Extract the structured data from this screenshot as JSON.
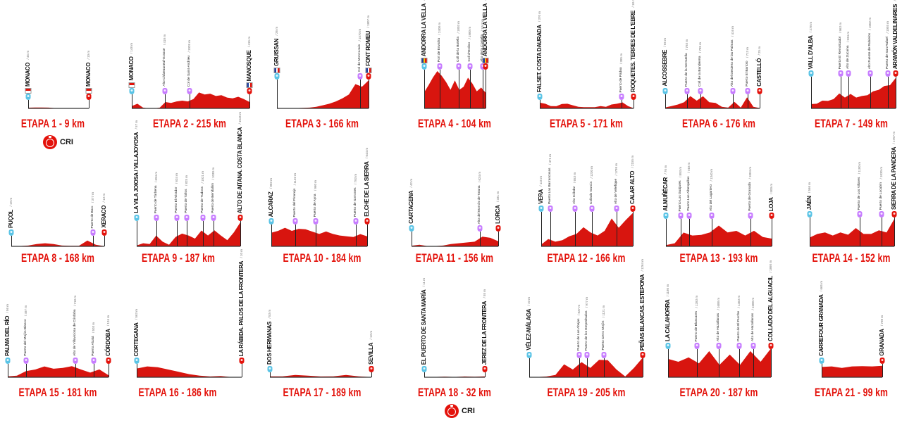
{
  "colors": {
    "profile": "#d8150f",
    "profile_dark": "#9e0d0a",
    "start": "#5bc4e6",
    "climb": "#c77dff",
    "finish": "#e3120b",
    "title": "#e3120b"
  },
  "cri_label": "CRI",
  "stages": [
    {
      "title": "ETAPA 1 - 9 km",
      "cri": true,
      "profile": [
        45,
        60,
        55,
        50,
        20,
        10,
        10,
        10,
        10,
        10
      ],
      "markers": [
        {
          "pos": 0,
          "type": "start",
          "name": "MONACO",
          "alt": "/ 45 m",
          "flag": "monaco"
        },
        {
          "pos": 1,
          "type": "finish",
          "name": "MONACO",
          "alt": "/ 10 m",
          "flag": "monaco"
        }
      ]
    },
    {
      "title": "ETAPA 2 - 215 km",
      "profile": [
        148,
        300,
        50,
        0,
        0,
        50,
        410,
        350,
        450,
        500,
        450,
        600,
        1026,
        900,
        950,
        800,
        850,
        700,
        650,
        750,
        600,
        415
      ],
      "markers": [
        {
          "pos": 0,
          "type": "start",
          "name": "MONACO",
          "alt": "/ 148 m",
          "flag": "monaco"
        },
        {
          "pos": 0.28,
          "type": "climb",
          "name": "Alto Châteauneuf-Grasse",
          "alt": "/ 410 m"
        },
        {
          "pos": 0.49,
          "type": "climb",
          "name": "Col de Saint-Andrieu",
          "alt": "/ 1026 m"
        },
        {
          "pos": 1,
          "type": "finish",
          "name": "MANOSQUE",
          "alt": "/ 415 m",
          "flag": "france"
        }
      ]
    },
    {
      "title": "ETAPA 3 - 166 km",
      "profile": [
        26,
        20,
        15,
        20,
        30,
        50,
        100,
        200,
        300,
        450,
        650,
        900,
        1570,
        1400,
        1807
      ],
      "markers": [
        {
          "pos": 0,
          "type": "start",
          "name": "GRUISSAN",
          "alt": "/ 26 m",
          "flag": "france"
        },
        {
          "pos": 0.91,
          "type": "climb",
          "name": "Col de Mont-Louis",
          "alt": "/ 1570 m"
        },
        {
          "pos": 1,
          "type": "finish",
          "name": "FONT ROMEU",
          "alt": "/ 1807 m",
          "flag": "france"
        }
      ]
    },
    {
      "title": "ETAPA 4 - 104 km",
      "profile": [
        1040,
        1500,
        2000,
        2408,
        2100,
        1700,
        1200,
        1803,
        1200,
        1400,
        1980,
        1600,
        1100,
        1347,
        1023
      ],
      "markers": [
        {
          "pos": 0,
          "type": "start",
          "name": "ANDORRA LA VELLA",
          "alt": "/ 1040 m",
          "flag": "andorra"
        },
        {
          "pos": 0.25,
          "type": "climb",
          "name": "Port de Envalira",
          "alt": "/ 2408 m"
        },
        {
          "pos": 0.56,
          "type": "climb",
          "name": "Coll de la Botella",
          "alt": "/ 1803 m"
        },
        {
          "pos": 0.75,
          "type": "climb",
          "name": "Coll d'Ordino",
          "alt": "/ 1980 m"
        },
        {
          "pos": 0.95,
          "type": "climb",
          "name": "Alto de la Comella",
          "alt": "/ 1347 m"
        },
        {
          "pos": 1,
          "type": "finish",
          "name": "ANDORRA LA VELLA",
          "alt": "/ 1023 m",
          "flag": "andorra"
        }
      ]
    },
    {
      "title": "ETAPA 5 - 171  km",
      "profile": [
        370,
        300,
        150,
        140,
        280,
        300,
        200,
        100,
        80,
        80,
        80,
        150,
        100,
        250,
        300,
        385,
        150,
        18
      ],
      "markers": [
        {
          "pos": 0,
          "type": "start",
          "name": "FALSET. COSTA DAURADA",
          "alt": "/ 370 m"
        },
        {
          "pos": 0.87,
          "type": "climb",
          "name": "Puerto de Pàdua",
          "alt": "/ 385 m"
        },
        {
          "pos": 1,
          "type": "finish",
          "name": "ROQUETES. TERRES DE L'EBRE",
          "alt": "/ 18 m"
        }
      ]
    },
    {
      "title": "ETAPA 6 - 176 km",
      "profile": [
        65,
        150,
        250,
        400,
        793,
        500,
        785,
        400,
        350,
        100,
        50,
        416,
        50,
        713,
        100,
        25
      ],
      "markers": [
        {
          "pos": 0,
          "type": "start",
          "name": "ALCOSSEBRE",
          "alt": "/ 65 m"
        },
        {
          "pos": 0.23,
          "type": "climb",
          "name": "Puerto de la Serratella",
          "alt": "/ 793 m"
        },
        {
          "pos": 0.37,
          "type": "climb",
          "name": "Coll de la Bandereta",
          "alt": "/ 785 m"
        },
        {
          "pos": 0.72,
          "type": "climb",
          "name": "Alto del Desierto de las Palmas",
          "alt": "/ 416 m"
        },
        {
          "pos": 0.87,
          "type": "climb",
          "name": "Puerto El Bartolo",
          "alt": "/ 713 m"
        },
        {
          "pos": 1,
          "type": "finish",
          "name": "CASTELLÓ",
          "alt": "/ 25 m"
        }
      ]
    },
    {
      "title": "ETAPA 7 - 149 km",
      "profile": [
        278,
        300,
        500,
        480,
        600,
        963,
        700,
        934,
        700,
        800,
        850,
        1100,
        1200,
        1450,
        1500,
        1961
      ],
      "markers": [
        {
          "pos": 0,
          "type": "start",
          "name": "VALL D'ALBA",
          "alt": "/ 278 m"
        },
        {
          "pos": 0.35,
          "type": "climb",
          "name": "Puerto El Remolcador",
          "alt": "/ 963 m"
        },
        {
          "pos": 0.44,
          "type": "climb",
          "name": "Alto de Zucaina",
          "alt": "/ 934 m"
        },
        {
          "pos": 0.7,
          "type": "climb",
          "name": "Alto Fuente de Rubielos",
          "alt": "/ 1002 m"
        },
        {
          "pos": 0.91,
          "type": "climb",
          "name": "Puerto de San Rafael",
          "alt": "/ 1055 m"
        },
        {
          "pos": 1,
          "type": "finish",
          "name": "ARAMÓN VALDELINARES",
          "alt": "/ 1961 m"
        }
      ]
    },
    {
      "title": "ETAPA 8 - 168 km",
      "profile": [
        19,
        20,
        50,
        150,
        200,
        150,
        50,
        30,
        30,
        377,
        100,
        13
      ],
      "markers": [
        {
          "pos": 0,
          "type": "start",
          "name": "PUÇOL",
          "alt": "/ 19 m"
        },
        {
          "pos": 0.88,
          "type": "climb",
          "name": "Puerto de Barx",
          "alt": "/ 377 m"
        },
        {
          "pos": 1,
          "type": "finish",
          "name": "XERACO",
          "alt": "/ 13 m"
        }
      ]
    },
    {
      "title": "ETAPA 9 - 187 km",
      "profile": [
        57,
        200,
        150,
        694,
        300,
        100,
        600,
        825,
        700,
        500,
        1021,
        700,
        1030,
        700,
        400,
        900,
        1545
      ],
      "markers": [
        {
          "pos": 0,
          "type": "start",
          "name": "LA VILA JOIOSA / VILLAJOYOSA",
          "alt": "/ 57 m"
        },
        {
          "pos": 0.19,
          "type": "climb",
          "name": "Puerto de Tàrbena",
          "alt": "/ 694 m"
        },
        {
          "pos": 0.39,
          "type": "climb",
          "name": "Puerto El Mirador",
          "alt": "/ 634 m"
        },
        {
          "pos": 0.48,
          "type": "climb",
          "name": "Puerto de Tollos",
          "alt": "/ 825 m"
        },
        {
          "pos": 0.64,
          "type": "climb",
          "name": "Puerto de Tudons",
          "alt": "/ 1021 m"
        },
        {
          "pos": 0.74,
          "type": "climb",
          "name": "Puerto de Benifallim",
          "alt": "/ 1030 m"
        },
        {
          "pos": 1,
          "type": "finish",
          "name": "ALTO DE AITANA. COSTA BLANCA",
          "alt": "/ 1545 m"
        }
      ]
    },
    {
      "title": "ETAPA 10 - 184 km",
      "profile": [
        883,
        1000,
        1200,
        1000,
        1132,
        1100,
        950,
        800,
        960,
        800,
        700,
        650,
        600,
        793,
        644
      ],
      "markers": [
        {
          "pos": 0,
          "type": "start",
          "name": "ALCARAZ",
          "alt": "/ 883 m"
        },
        {
          "pos": 0.25,
          "type": "climb",
          "name": "Puerto del Pinarejo",
          "alt": "/ 1132 m"
        },
        {
          "pos": 0.46,
          "type": "climb",
          "name": "Puerto de Ayna",
          "alt": "/ 960 m"
        },
        {
          "pos": 0.88,
          "type": "climb",
          "name": "Puerto de Sorrones",
          "alt": "/ 793 m"
        },
        {
          "pos": 1,
          "type": "finish",
          "name": "ELCHE DE LA SIERRA",
          "alt": "/ 644 m"
        }
      ]
    },
    {
      "title": "ETAPA 11 - 156 km",
      "profile": [
        42,
        100,
        20,
        20,
        50,
        150,
        200,
        250,
        300,
        624,
        550,
        331
      ],
      "markers": [
        {
          "pos": 0,
          "type": "start",
          "name": "CARTAGENA",
          "alt": "/ 42 m"
        },
        {
          "pos": 0.79,
          "type": "climb",
          "name": "Alto del Morrón de Totana",
          "alt": "/ 624 m"
        },
        {
          "pos": 1,
          "type": "finish",
          "name": "LORCA",
          "alt": "/ 331 m"
        }
      ]
    },
    {
      "title": "ETAPA 12 - 166 km",
      "profile": [
        115,
        471,
        300,
        400,
        653,
        800,
        1230,
        900,
        700,
        1000,
        1799,
        1200,
        1700,
        2155
      ],
      "markers": [
        {
          "pos": 0,
          "type": "start",
          "name": "VERA",
          "alt": "/ 115 m"
        },
        {
          "pos": 0.1,
          "type": "climb",
          "name": "Puerto Las Barrancosas",
          "alt": "/ 471 m"
        },
        {
          "pos": 0.37,
          "type": "climb",
          "name": "Alto Cóbdar",
          "alt": "/ 653 m"
        },
        {
          "pos": 0.55,
          "type": "climb",
          "name": "Collado García",
          "alt": "/ 1230 m"
        },
        {
          "pos": 0.82,
          "type": "climb",
          "name": "Alto de Velefique",
          "alt": "/ 1799 m"
        },
        {
          "pos": 1,
          "type": "finish",
          "name": "CALAR ALTO",
          "alt": "/ 2155 m"
        }
      ]
    },
    {
      "title": "ETAPA 13 - 193 km",
      "profile": [
        76,
        200,
        893,
        700,
        740,
        900,
        1340,
        900,
        1000,
        700,
        1004,
        600,
        500
      ],
      "markers": [
        {
          "pos": 0,
          "type": "start",
          "name": "ALMUÑÉCAR",
          "alt": "/ 76 m"
        },
        {
          "pos": 0.14,
          "type": "climb",
          "name": "Puerto Los Guájares",
          "alt": "/ 893 m"
        },
        {
          "pos": 0.22,
          "type": "climb",
          "name": "Puerto Las Alberquillas",
          "alt": "/ 740 m"
        },
        {
          "pos": 0.43,
          "type": "climb",
          "name": "Alto del Lagartero",
          "alt": "/ 1340 m"
        },
        {
          "pos": 0.8,
          "type": "climb",
          "name": "Puerto de Granada",
          "alt": "/ 1004 m"
        },
        {
          "pos": 1,
          "type": "finish",
          "name": "LOJA",
          "alt": "/ 500 m"
        }
      ]
    },
    {
      "title": "ETAPA 14 - 152 km",
      "profile": [
        566,
        800,
        900,
        700,
        900,
        750,
        1180,
        800,
        800,
        1030,
        900,
        1757
      ],
      "markers": [
        {
          "pos": 0,
          "type": "start",
          "name": "JAÉN",
          "alt": "/ 566 m"
        },
        {
          "pos": 0.59,
          "type": "climb",
          "name": "Puerto de Los Villares",
          "alt": "/ 1180 m"
        },
        {
          "pos": 0.85,
          "type": "climb",
          "name": "Puerto de Locubín",
          "alt": "/ 1030 m"
        },
        {
          "pos": 1,
          "type": "finish",
          "name": "SIERRA DE LA PANDERA",
          "alt": "/ 1757 m"
        }
      ]
    },
    {
      "title": "ETAPA 15 - 181 km",
      "profile": [
        56,
        100,
        400,
        500,
        700,
        550,
        600,
        718,
        500,
        300,
        503,
        134
      ],
      "markers": [
        {
          "pos": 0,
          "type": "start",
          "name": "PALMA DEL RÍO",
          "alt": "/ 56 m"
        },
        {
          "pos": 0.18,
          "type": "climb",
          "name": "Puerto del Mojón Blanco",
          "alt": "/ 497 m"
        },
        {
          "pos": 0.67,
          "type": "climb",
          "name": "Alto de Villaviciosa de Córdoba",
          "alt": "/ 718 m"
        },
        {
          "pos": 0.85,
          "type": "climb",
          "name": "Puerto Alcalá",
          "alt": "/ 503 m"
        },
        {
          "pos": 1,
          "type": "finish",
          "name": "CÓRDOBA",
          "alt": "/ 134 m"
        }
      ]
    },
    {
      "title": "ETAPA 16 - 186 km",
      "profile": [
        563,
        700,
        650,
        500,
        350,
        200,
        100,
        50,
        80,
        10,
        10
      ],
      "markers": [
        {
          "pos": 0,
          "type": "start",
          "name": "CORTEGANA",
          "alt": "/ 563 m"
        },
        {
          "pos": 1,
          "type": "finish",
          "name": "LA RÁBIDA. PALOS DE LA FRONTERA",
          "alt": "/ 10 m"
        }
      ]
    },
    {
      "title": "ETAPA 17 - 189 km",
      "profile": [
        53,
        60,
        150,
        100,
        50,
        60,
        150,
        60,
        13
      ],
      "markers": [
        {
          "pos": 0,
          "type": "start",
          "name": "DOS HERMANAS",
          "alt": "/ 53 m"
        },
        {
          "pos": 1,
          "type": "finish",
          "name": "SEVILLA",
          "alt": "/ 13 m"
        }
      ]
    },
    {
      "title": "ETAPA 18 - 32 km",
      "cri": true,
      "profile": [
        11,
        20,
        40,
        20,
        50,
        30,
        55
      ],
      "markers": [
        {
          "pos": 0,
          "type": "start",
          "name": "EL PUERTO DE SANTA MARÍA",
          "alt": "/ 11 m"
        },
        {
          "pos": 1,
          "type": "finish",
          "name": "JEREZ DE LA FRONTERA",
          "alt": "/ 55 m"
        }
      ]
    },
    {
      "title": "ETAPA 19 - 205 km",
      "profile": [
        10,
        20,
        50,
        150,
        837,
        500,
        977,
        600,
        1121,
        1100,
        500,
        50,
        600,
        1264
      ],
      "markers": [
        {
          "pos": 0,
          "type": "start",
          "name": "VÉLEZ-MÁLAGA",
          "alt": "/ 10 m"
        },
        {
          "pos": 0.44,
          "type": "climb",
          "name": "Puerto de Las Abejas",
          "alt": "/ 837 m"
        },
        {
          "pos": 0.51,
          "type": "climb",
          "name": "Puerto de los Empedrados",
          "alt": "/ 977 m"
        },
        {
          "pos": 0.66,
          "type": "climb",
          "name": "Puerto Cerro Mojón",
          "alt": "/ 1121 m"
        },
        {
          "pos": 1,
          "type": "finish",
          "name": "PEÑAS BLANCAS. ESTEPONA",
          "alt": "/ 1264 m"
        }
      ]
    },
    {
      "title": "ETAPA 20 - 187 km",
      "profile": [
        1186,
        1000,
        1283,
        900,
        1688,
        800,
        1463,
        800,
        1688,
        1000,
        1860
      ],
      "markers": [
        {
          "pos": 0,
          "type": "start",
          "name": "LA CALAHORRA",
          "alt": "/ 1186 m"
        },
        {
          "pos": 0.28,
          "type": "climb",
          "name": "Puerto de Blancares",
          "alt": "/ 1283 m"
        },
        {
          "pos": 0.49,
          "type": "climb",
          "name": "Alto de Hazallanas",
          "alt": "/ 1688 m"
        },
        {
          "pos": 0.69,
          "type": "climb",
          "name": "Puerto de El Purche",
          "alt": "/ 1463 m"
        },
        {
          "pos": 0.83,
          "type": "climb",
          "name": "Alto de Hazallanas",
          "alt": "/ 1688 m"
        },
        {
          "pos": 1,
          "type": "finish",
          "name": "COLLADO DEL ALGUACIL",
          "alt": "/ 1860 m"
        }
      ]
    },
    {
      "title": "ETAPA 21 - 99 km",
      "profile": [
        665,
        700,
        600,
        700,
        720,
        700,
        738
      ],
      "markers": [
        {
          "pos": 0,
          "type": "start",
          "name": "CARREFOUR GRANADA",
          "alt": "/ 665 m"
        },
        {
          "pos": 1,
          "type": "finish",
          "name": "GRANADA",
          "alt": "/ 738 m"
        }
      ]
    }
  ]
}
